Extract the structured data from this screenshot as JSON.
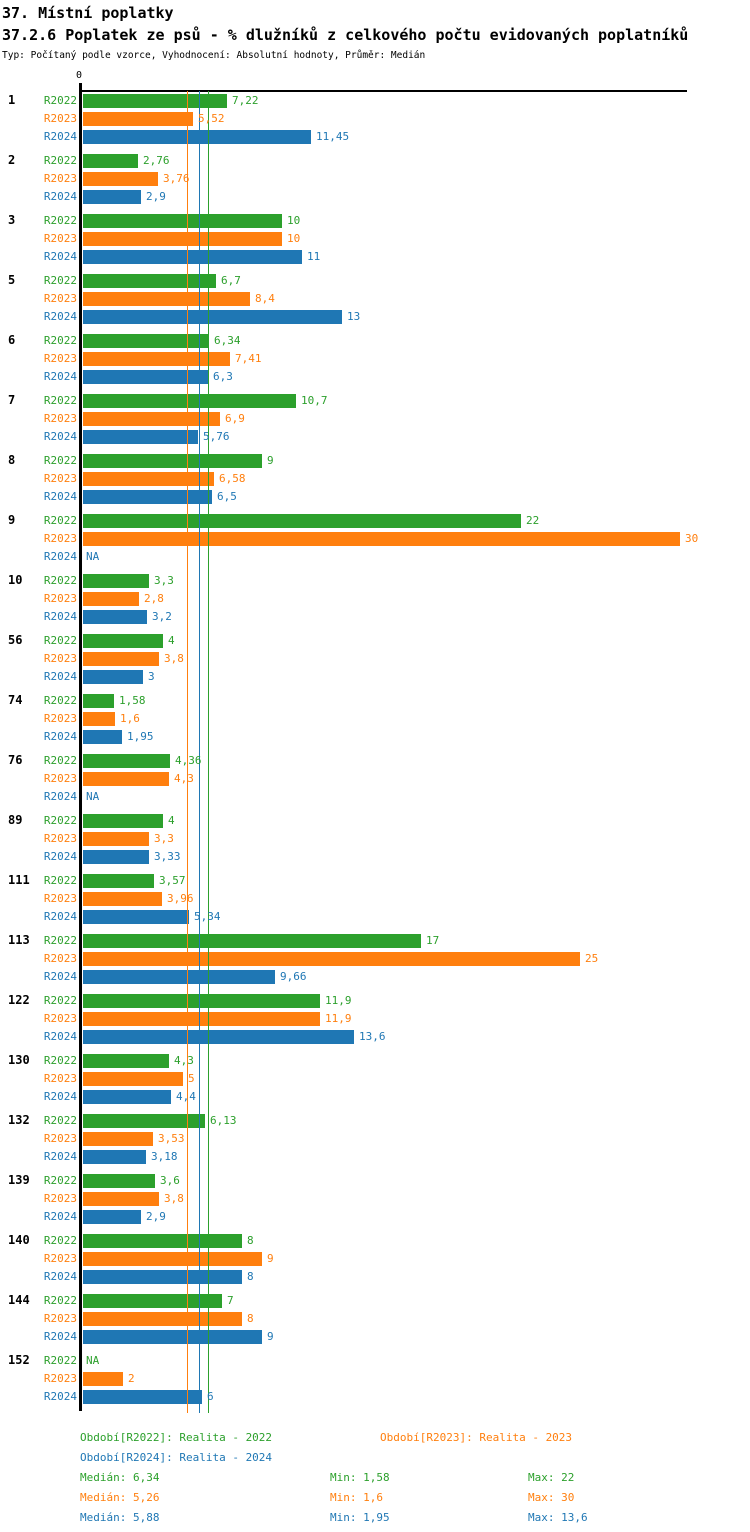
{
  "header": {
    "title": "37. Místní poplatky",
    "subtitle": "37.2.6 Poplatek ze psů - % dlužníků z celkového počtu evidovaných poplatníků",
    "meta": "Typ: Počítaný podle vzorce, Vyhodnocení: Absolutní hodnoty, Průměr: Medián"
  },
  "chart_data": {
    "type": "bar",
    "orientation": "horizontal",
    "origin_label": "0",
    "xlim": [
      0,
      30.4
    ],
    "na_label": "NA",
    "legend_position": "bottom",
    "series": [
      {
        "name": "R2022",
        "color": "#2ca02c",
        "median": 6.34,
        "min": 1.58,
        "max": 22
      },
      {
        "name": "R2023",
        "color": "#ff7f0e",
        "median": 5.26,
        "min": 1.6,
        "max": 30
      },
      {
        "name": "R2024",
        "color": "#1f77b4",
        "median": 5.88,
        "min": 1.95,
        "max": 13.6
      }
    ],
    "groups": [
      {
        "label": "1",
        "values": [
          7.22,
          5.52,
          11.45
        ],
        "display": [
          "7,22",
          "5,52",
          "11,45"
        ]
      },
      {
        "label": "2",
        "values": [
          2.76,
          3.76,
          2.9
        ],
        "display": [
          "2,76",
          "3,76",
          "2,9"
        ]
      },
      {
        "label": "3",
        "values": [
          10,
          10,
          11
        ],
        "display": [
          "10",
          "10",
          "11"
        ]
      },
      {
        "label": "5",
        "values": [
          6.7,
          8.4,
          13
        ],
        "display": [
          "6,7",
          "8,4",
          "13"
        ]
      },
      {
        "label": "6",
        "values": [
          6.34,
          7.41,
          6.3
        ],
        "display": [
          "6,34",
          "7,41",
          "6,3"
        ]
      },
      {
        "label": "7",
        "values": [
          10.7,
          6.9,
          5.76
        ],
        "display": [
          "10,7",
          "6,9",
          "5,76"
        ]
      },
      {
        "label": "8",
        "values": [
          9,
          6.58,
          6.5
        ],
        "display": [
          "9",
          "6,58",
          "6,5"
        ]
      },
      {
        "label": "9",
        "values": [
          22,
          30,
          null
        ],
        "display": [
          "22",
          "30",
          "NA"
        ]
      },
      {
        "label": "10",
        "values": [
          3.3,
          2.8,
          3.2
        ],
        "display": [
          "3,3",
          "2,8",
          "3,2"
        ]
      },
      {
        "label": "56",
        "values": [
          4,
          3.8,
          3
        ],
        "display": [
          "4",
          "3,8",
          "3"
        ]
      },
      {
        "label": "74",
        "values": [
          1.58,
          1.6,
          1.95
        ],
        "display": [
          "1,58",
          "1,6",
          "1,95"
        ]
      },
      {
        "label": "76",
        "values": [
          4.36,
          4.3,
          null
        ],
        "display": [
          "4,36",
          "4,3",
          "NA"
        ]
      },
      {
        "label": "89",
        "values": [
          4,
          3.3,
          3.33
        ],
        "display": [
          "4",
          "3,3",
          "3,33"
        ]
      },
      {
        "label": "111",
        "values": [
          3.57,
          3.96,
          5.34
        ],
        "display": [
          "3,57",
          "3,96",
          "5,34"
        ]
      },
      {
        "label": "113",
        "values": [
          17,
          25,
          9.66
        ],
        "display": [
          "17",
          "25",
          "9,66"
        ]
      },
      {
        "label": "122",
        "values": [
          11.9,
          11.9,
          13.6
        ],
        "display": [
          "11,9",
          "11,9",
          "13,6"
        ]
      },
      {
        "label": "130",
        "values": [
          4.3,
          5,
          4.4
        ],
        "display": [
          "4,3",
          "5",
          "4,4"
        ]
      },
      {
        "label": "132",
        "values": [
          6.13,
          3.53,
          3.18
        ],
        "display": [
          "6,13",
          "3,53",
          "3,18"
        ]
      },
      {
        "label": "139",
        "values": [
          3.6,
          3.8,
          2.9
        ],
        "display": [
          "3,6",
          "3,8",
          "2,9"
        ]
      },
      {
        "label": "140",
        "values": [
          8,
          9,
          8
        ],
        "display": [
          "8",
          "9",
          "8"
        ]
      },
      {
        "label": "144",
        "values": [
          7,
          8,
          9
        ],
        "display": [
          "7",
          "8",
          "9"
        ]
      },
      {
        "label": "152",
        "values": [
          null,
          2,
          6
        ],
        "display": [
          "NA",
          "2",
          "6"
        ]
      }
    ]
  },
  "legend": {
    "r2022": {
      "label": "Období[R2022]: Realita - 2022"
    },
    "r2023": {
      "label": "Období[R2023]: Realita - 2023"
    },
    "r2024": {
      "label": "Období[R2024]: Realita - 2024"
    }
  },
  "stats": [
    {
      "median": "Medián: 6,34",
      "min": "Min: 1,58",
      "max": "Max: 22"
    },
    {
      "median": "Medián: 5,26",
      "min": "Min: 1,6",
      "max": "Max: 30"
    },
    {
      "median": "Medián: 5,88",
      "min": "Min: 1,95",
      "max": "Max: 13,6"
    }
  ]
}
